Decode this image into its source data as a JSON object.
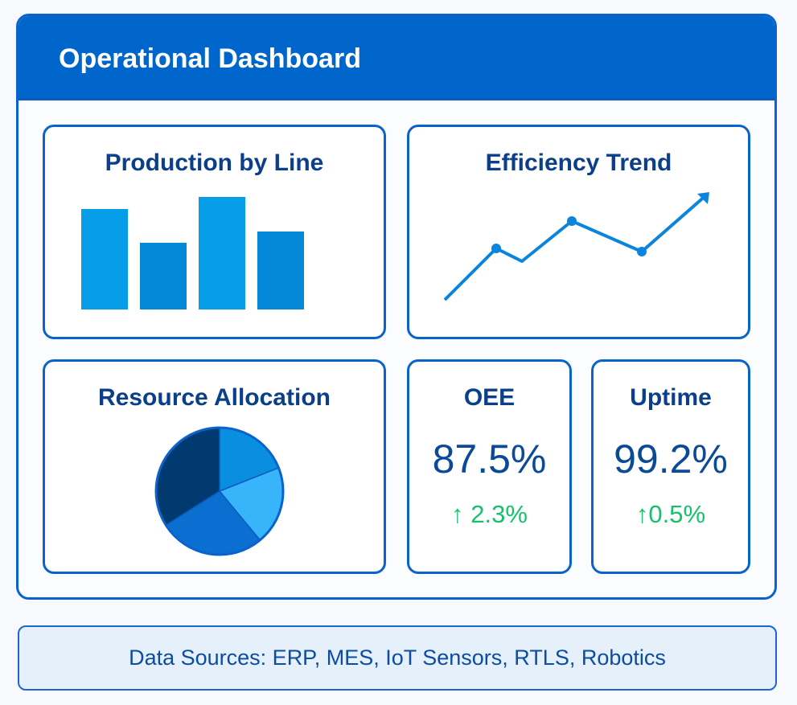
{
  "header": {
    "title": "Operational Dashboard"
  },
  "cards": {
    "production": {
      "title": "Production by Line"
    },
    "efficiency": {
      "title": "Efficiency Trend"
    },
    "resource": {
      "title": "Resource Allocation"
    },
    "oee": {
      "title": "OEE",
      "value": "87.5%",
      "delta": "↑ 2.3%",
      "trend": "up"
    },
    "uptime": {
      "title": "Uptime",
      "value": "99.2%",
      "delta": "↑0.5%",
      "trend": "up"
    }
  },
  "footer": {
    "text": "Data Sources: ERP, MES, IoT Sensors, RTLS, Robotics"
  },
  "colors": {
    "brand": "#0066cc",
    "title": "#0b3f8a",
    "positive": "#15c26b"
  },
  "chart_data": [
    {
      "type": "bar",
      "title": "Production by Line",
      "values": [
        125,
        83,
        140,
        97
      ],
      "colors": [
        "#069ee8",
        "#0488d8",
        "#069ee8",
        "#0488d8"
      ]
    },
    {
      "type": "line",
      "title": "Efficiency Trend",
      "values": [
        0,
        64,
        48,
        98,
        60,
        131
      ],
      "end_marker": "arrow"
    },
    {
      "type": "pie",
      "title": "Resource Allocation",
      "values": [
        19,
        20,
        27,
        34
      ],
      "colors": [
        "#0a8fe0",
        "#38b4fb",
        "#0a6fd0",
        "#013a6e"
      ]
    }
  ]
}
